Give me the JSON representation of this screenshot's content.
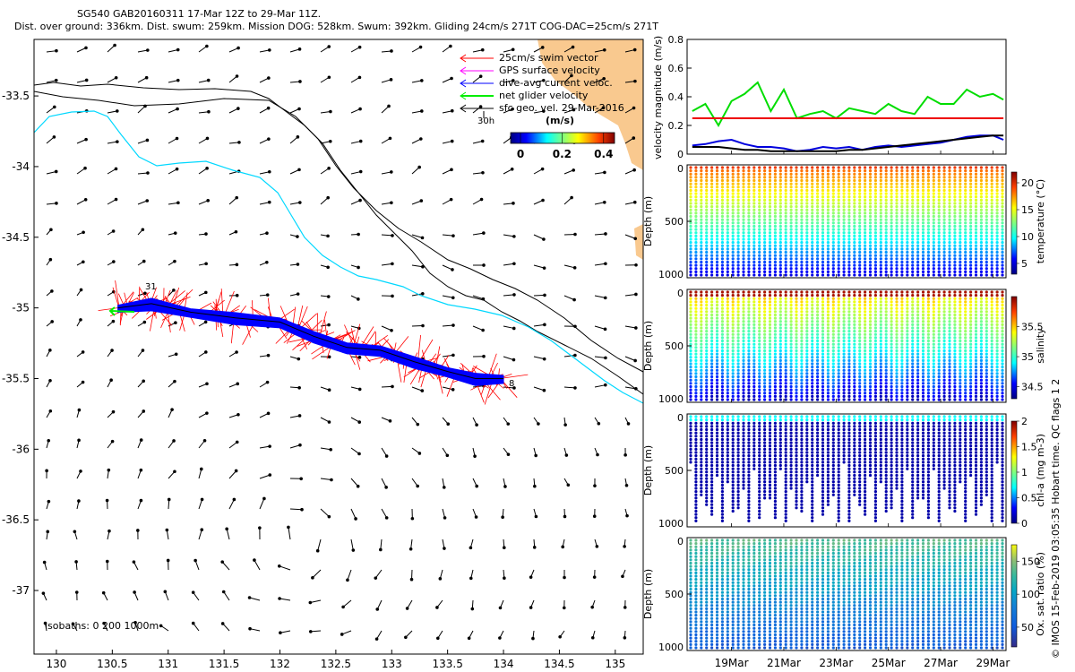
{
  "title_line1": "SG540 GAB20160311 17-Mar 12Z to 29-Mar 11Z.",
  "title_line2": "Dist. over ground: 336km. Dist. swum: 259km. Mission DOG: 528km. Swum: 392km. Gliding 24cm/s 271T COG-DAC=25cm/s 271T",
  "credit": "© IMOS 15-Feb-2019 03:05:35 Hobart time. QC flags 1  2",
  "map": {
    "lon_ticks": [
      "130",
      "130.5",
      "131",
      "131.5",
      "132",
      "132.5",
      "133",
      "133.5",
      "134",
      "134.5",
      "135"
    ],
    "lat_ticks": [
      "-33.5",
      "-34",
      "-34.5",
      "-35",
      "-35.5",
      "-36",
      "-36.5",
      "-37"
    ],
    "lon_range": [
      129.8,
      135.25
    ],
    "lat_range": [
      -37.45,
      -33.1
    ],
    "legend": [
      {
        "label": "25cm/s swim vector",
        "color": "#ff0000"
      },
      {
        "label": "GPS surface velocity",
        "color": "#ff00ff"
      },
      {
        "label": "dive-avg current veloc.",
        "color": "#0000ff"
      },
      {
        "label": "net glider velocity",
        "color": "#00ee00"
      },
      {
        "label": "sfc geo. vel. 29-Mar-2016",
        "color": "#000000"
      }
    ],
    "time_label": "30h",
    "colorbar_unit": "(m/s)",
    "colorbar_ticks": [
      "0",
      "0.2",
      "0.4"
    ],
    "isobaths_label": "isobaths: 0   200  1000m",
    "track_start_label": "31",
    "track_end_label": "8",
    "isobath_colors": {
      "coast": "#000000",
      "200m": "#000000",
      "1000m": "#00d8ff"
    },
    "land_color": "#f9c98f"
  },
  "velocity_panel": {
    "ylabel": "velocity magnitude (m/s)",
    "yticks": [
      "0",
      "0.2",
      "0.4",
      "0.6",
      "0.8"
    ],
    "ylim": [
      0,
      0.8
    ],
    "reference_line": 0.25,
    "series": [
      {
        "color": "#00dd00"
      },
      {
        "color": "#0000dd"
      },
      {
        "color": "#000000"
      },
      {
        "color": "#ee0000"
      }
    ]
  },
  "profile_panels": [
    {
      "ylabel": "Depth (m)",
      "cbar_label": "temperature (°C)",
      "cbar_ticks": [
        "5",
        "10",
        "15",
        "20"
      ],
      "cbar_range": [
        3,
        22
      ],
      "yticks": [
        "0",
        "500",
        "1000"
      ]
    },
    {
      "ylabel": "Depth (m)",
      "cbar_label": "salinity",
      "cbar_ticks": [
        "34.5",
        "35",
        "35.5"
      ],
      "cbar_range": [
        34.3,
        36.0
      ],
      "yticks": [
        "0",
        "500",
        "1000"
      ]
    },
    {
      "ylabel": "Depth (m)",
      "cbar_label": "chl-a (mg m-3)",
      "cbar_ticks": [
        "0",
        "0.5",
        "1",
        "1.5",
        "2"
      ],
      "cbar_range": [
        0,
        2
      ],
      "yticks": [
        "0",
        "500",
        "1000"
      ]
    },
    {
      "ylabel": "Depth (m)",
      "cbar_label": "Ox. sat. ratio (%)",
      "cbar_ticks": [
        "50",
        "100",
        "150"
      ],
      "cbar_range": [
        20,
        175
      ],
      "yticks": [
        "0",
        "500",
        "1000"
      ]
    }
  ],
  "time_axis": {
    "labels": [
      "19Mar",
      "21Mar",
      "23Mar",
      "25Mar",
      "27Mar",
      "29Mar"
    ]
  },
  "chart_data": [
    {
      "type": "scatter",
      "xlabel": "",
      "ylabel": "",
      "xlim": [
        129.8,
        135.25
      ],
      "ylim": [
        -37.45,
        -33.1
      ],
      "series": [
        {
          "name": "glider track",
          "x": [
            130.55,
            130.85,
            131.2,
            131.6,
            132.0,
            132.3,
            132.6,
            132.9,
            133.2,
            133.5,
            133.75,
            134.0
          ],
          "y": [
            -35.0,
            -34.97,
            -35.03,
            -35.07,
            -35.1,
            -35.2,
            -35.28,
            -35.3,
            -35.38,
            -35.45,
            -35.5,
            -35.5
          ]
        }
      ]
    },
    {
      "type": "line",
      "ylabel": "velocity magnitude (m/s)",
      "ylim": [
        0,
        0.8
      ],
      "x": [
        17.5,
        18.0,
        18.5,
        19.0,
        19.5,
        20.0,
        20.5,
        21.0,
        21.5,
        22.0,
        22.5,
        23.0,
        23.5,
        24.0,
        24.5,
        25.0,
        25.5,
        26.0,
        26.5,
        27.0,
        27.5,
        28.0,
        28.5,
        29.0,
        29.4
      ],
      "series": [
        {
          "name": "net glider velocity",
          "values": [
            0.3,
            0.35,
            0.2,
            0.37,
            0.42,
            0.5,
            0.3,
            0.45,
            0.25,
            0.28,
            0.3,
            0.25,
            0.32,
            0.3,
            0.28,
            0.35,
            0.3,
            0.28,
            0.4,
            0.35,
            0.35,
            0.45,
            0.4,
            0.42,
            0.38
          ]
        },
        {
          "name": "dive-avg current veloc.",
          "values": [
            0.06,
            0.07,
            0.09,
            0.1,
            0.07,
            0.05,
            0.05,
            0.04,
            0.02,
            0.03,
            0.05,
            0.04,
            0.05,
            0.03,
            0.05,
            0.06,
            0.05,
            0.06,
            0.07,
            0.08,
            0.1,
            0.12,
            0.13,
            0.13,
            0.1
          ]
        },
        {
          "name": "sfc geo. vel.",
          "values": [
            0.05,
            0.05,
            0.05,
            0.04,
            0.03,
            0.03,
            0.02,
            0.02,
            0.02,
            0.02,
            0.02,
            0.02,
            0.03,
            0.03,
            0.04,
            0.05,
            0.06,
            0.07,
            0.08,
            0.09,
            0.1,
            0.11,
            0.12,
            0.13,
            0.13
          ]
        },
        {
          "name": "25cm/s swim vector",
          "values": [
            0.25,
            0.25,
            0.25,
            0.25,
            0.25,
            0.25,
            0.25,
            0.25,
            0.25,
            0.25,
            0.25,
            0.25,
            0.25,
            0.25,
            0.25,
            0.25,
            0.25,
            0.25,
            0.25,
            0.25,
            0.25,
            0.25,
            0.25,
            0.25,
            0.25
          ]
        }
      ]
    }
  ]
}
